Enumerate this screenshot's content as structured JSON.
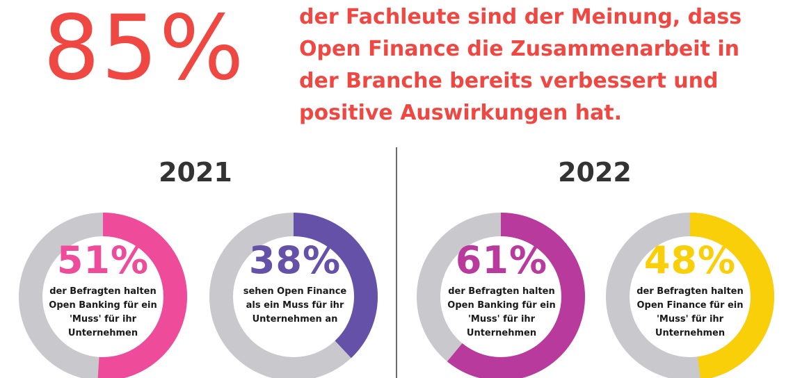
{
  "header": {
    "big_percentage": "85%",
    "headline": "der Fachleute sind der Meinung, dass Open Finance die Zusammenarbeit in der Branche bereits verbessert und positive Auswirkungen hat."
  },
  "colors": {
    "red": "#ef4843",
    "track": "#c9c9cd",
    "pink": "#ee4b9b",
    "purple": "#6651a8",
    "magenta": "#b83a9c",
    "yellow": "#f8cf08"
  },
  "chart_data": {
    "type": "pie",
    "groups": [
      {
        "year": "2021",
        "items": [
          {
            "value": 51,
            "label": "51%",
            "text": "der Befragten halten Open Banking für ein 'Muss' für ihr Unternehmen",
            "color": "#ee4b9b"
          },
          {
            "value": 38,
            "label": "38%",
            "text": "sehen Open Finance als ein Muss für ihr Unternehmen an",
            "color": "#6651a8"
          }
        ]
      },
      {
        "year": "2022",
        "items": [
          {
            "value": 61,
            "label": "61%",
            "text": "der Befragten halten Open Banking für ein 'Muss' für ihr Unternehmen",
            "color": "#b83a9c"
          },
          {
            "value": 48,
            "label": "48%",
            "text": "der Befragten halten Open Finance für ein 'Muss' für ihr Unternehmen",
            "color": "#f8cf08"
          }
        ]
      }
    ]
  }
}
